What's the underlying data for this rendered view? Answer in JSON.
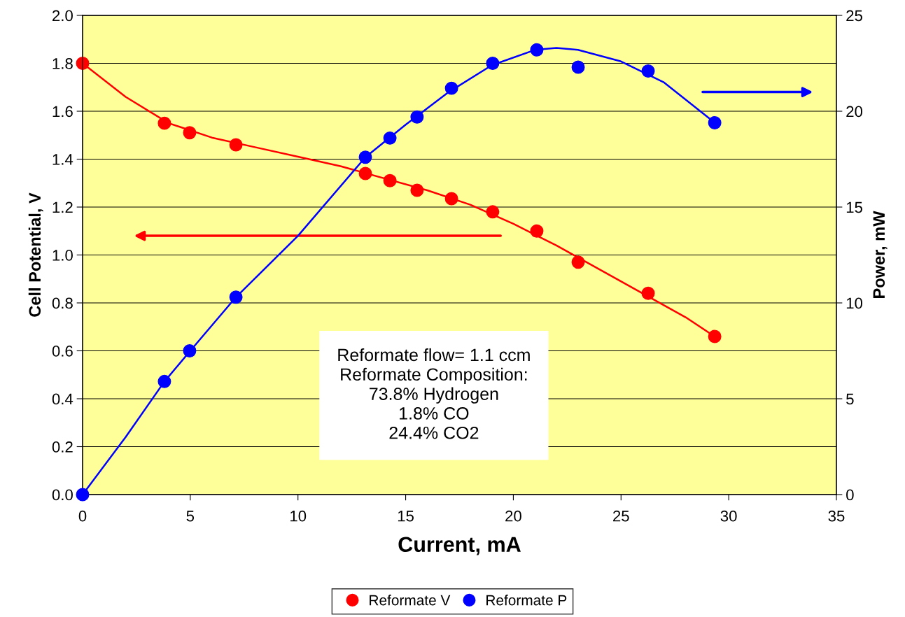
{
  "chart_data": {
    "type": "scatter",
    "xlabel": "Current, mA",
    "ylabel": "Cell Potential, V",
    "y2label": "Power, mW",
    "xlim": [
      0,
      35
    ],
    "xticks": [
      0,
      5,
      10,
      15,
      20,
      25,
      30,
      35
    ],
    "ylim": [
      0,
      2.0
    ],
    "yticks": [
      {
        "value": 0,
        "label": "0.0"
      },
      {
        "value": 0.2,
        "label": "0.2"
      },
      {
        "value": 0.4,
        "label": "0.4"
      },
      {
        "value": 0.6,
        "label": "0.6"
      },
      {
        "value": 0.8,
        "label": "0.8"
      },
      {
        "value": 1.0,
        "label": "1.0"
      },
      {
        "value": 1.2,
        "label": "1.2"
      },
      {
        "value": 1.4,
        "label": "1.4"
      },
      {
        "value": 1.6,
        "label": "1.6"
      },
      {
        "value": 1.8,
        "label": "1.8"
      },
      {
        "value": 2.0,
        "label": "2.0"
      }
    ],
    "y2lim": [
      0,
      25
    ],
    "y2ticks": [
      0,
      5,
      10,
      15,
      20,
      25
    ],
    "grid": "y",
    "legend": "bottom",
    "x": [
      0,
      3.8,
      4.97,
      7.12,
      13.13,
      14.27,
      15.53,
      17.13,
      19.04,
      21.09,
      23.01,
      26.26,
      29.35
    ],
    "series": [
      {
        "name": "Reformate V",
        "marker": "circle",
        "color": "#ff0000",
        "values": [
          1.8,
          1.55,
          1.51,
          1.46,
          1.34,
          1.31,
          1.27,
          1.235,
          1.18,
          1.1,
          0.97,
          0.84,
          0.66
        ]
      },
      {
        "name": "Reformate P",
        "marker": "circle",
        "axis": "y2",
        "color": "#0000ff",
        "values": [
          0,
          5.9,
          7.5,
          10.3,
          17.6,
          18.6,
          19.7,
          21.2,
          22.5,
          23.2,
          22.3,
          22.1,
          19.4
        ]
      },
      {
        "type": "line",
        "marker": "none",
        "color": "#ff0000",
        "x": [
          0,
          2,
          4,
          6,
          8,
          10,
          12,
          14,
          16,
          18,
          20,
          22,
          24,
          26,
          28,
          29.35
        ],
        "values": [
          1.8,
          1.66,
          1.55,
          1.49,
          1.45,
          1.41,
          1.37,
          1.32,
          1.27,
          1.21,
          1.13,
          1.04,
          0.94,
          0.84,
          0.74,
          0.66
        ]
      },
      {
        "type": "line",
        "marker": "none",
        "axis": "y2",
        "color": "#0000ff",
        "x": [
          0,
          2,
          3.8,
          5,
          7.12,
          10,
          13.13,
          15,
          17,
          19,
          21,
          22,
          23,
          25,
          27,
          29.35
        ],
        "values": [
          0,
          3.0,
          5.9,
          7.5,
          10.3,
          13.5,
          17.6,
          19.3,
          21.0,
          22.4,
          23.2,
          23.3,
          23.2,
          22.6,
          21.5,
          19.4
        ]
      }
    ],
    "annotations": [
      "Reformate flow= 1.1 ccm\nReformate Composition:\n73.8% Hydrogen\n1.8% CO\n24.4% CO2"
    ]
  }
}
